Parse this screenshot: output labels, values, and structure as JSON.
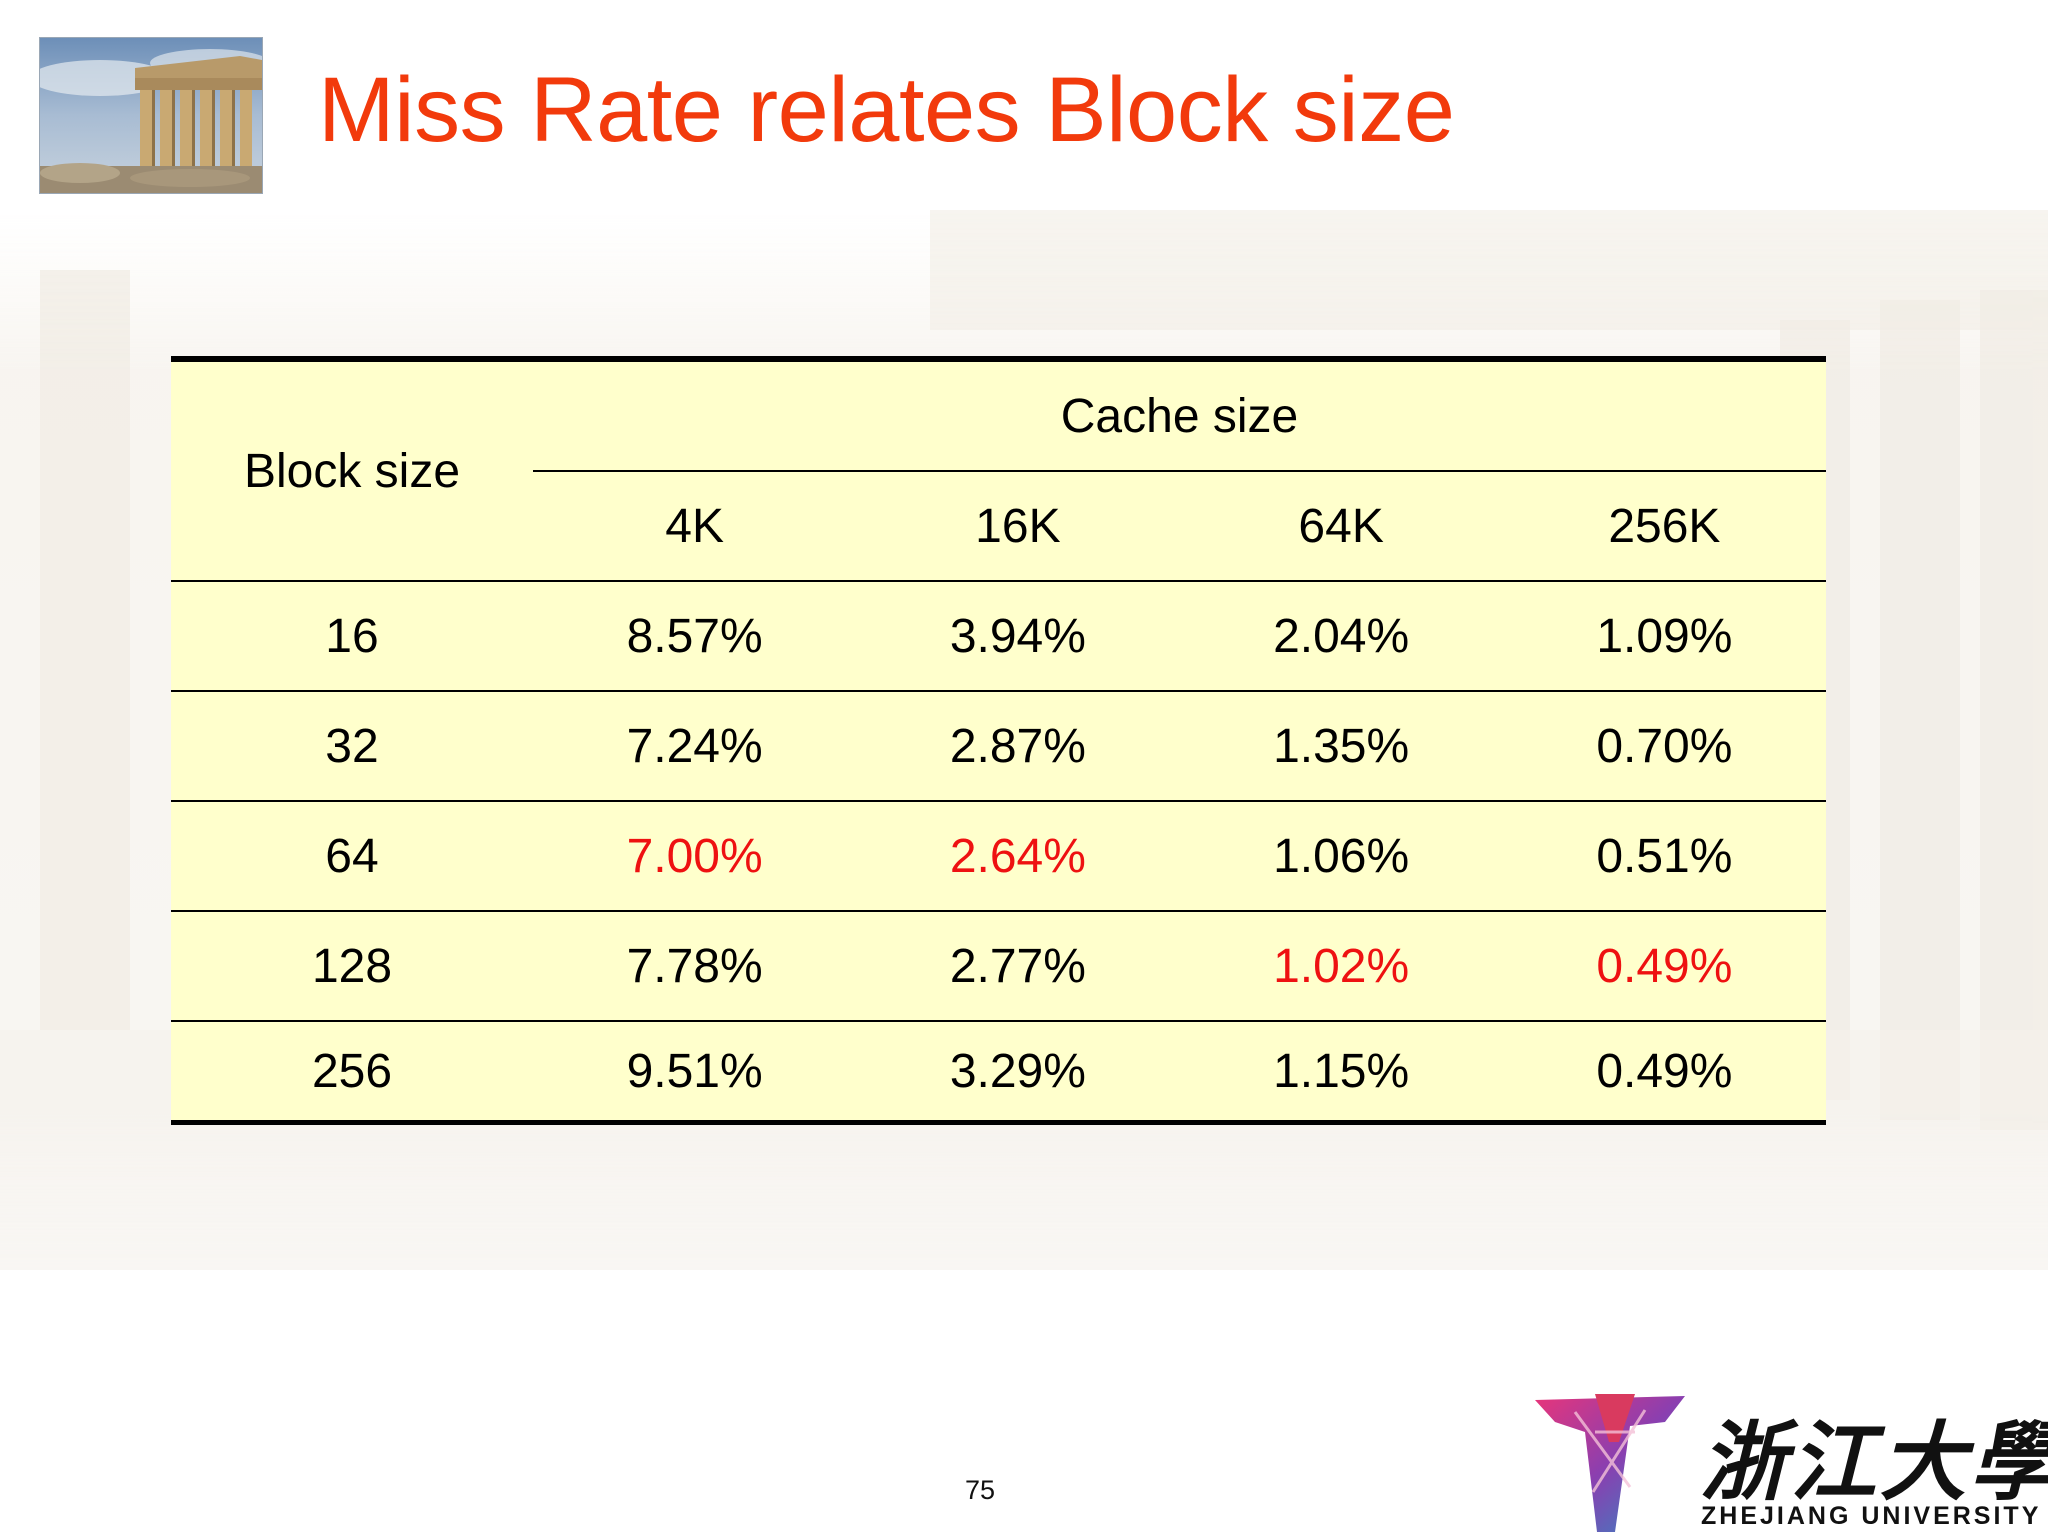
{
  "slide": {
    "title": "Miss Rate relates Block size",
    "page_number": "75"
  },
  "table": {
    "row_header": "Block size",
    "group_header": "Cache size",
    "columns": [
      "4K",
      "16K",
      "64K",
      "256K"
    ],
    "rows": [
      {
        "block": "16",
        "values": [
          "8.57%",
          "3.94%",
          "2.04%",
          "1.09%"
        ],
        "highlight": [
          false,
          false,
          false,
          false
        ]
      },
      {
        "block": "32",
        "values": [
          "7.24%",
          "2.87%",
          "1.35%",
          "0.70%"
        ],
        "highlight": [
          false,
          false,
          false,
          false
        ]
      },
      {
        "block": "64",
        "values": [
          "7.00%",
          "2.64%",
          "1.06%",
          "0.51%"
        ],
        "highlight": [
          true,
          true,
          false,
          false
        ]
      },
      {
        "block": "128",
        "values": [
          "7.78%",
          "2.77%",
          "1.02%",
          "0.49%"
        ],
        "highlight": [
          false,
          false,
          true,
          true
        ]
      },
      {
        "block": "256",
        "values": [
          "9.51%",
          "3.29%",
          "1.15%",
          "0.49%"
        ],
        "highlight": [
          false,
          false,
          false,
          false
        ]
      }
    ],
    "colors": {
      "background": "#ffffcc",
      "highlight_text": "#ee1111",
      "title": "#f23a0c"
    }
  },
  "logo": {
    "chinese_name": "浙江大學",
    "english_name": "ZHEJIANG UNIVERSITY"
  }
}
